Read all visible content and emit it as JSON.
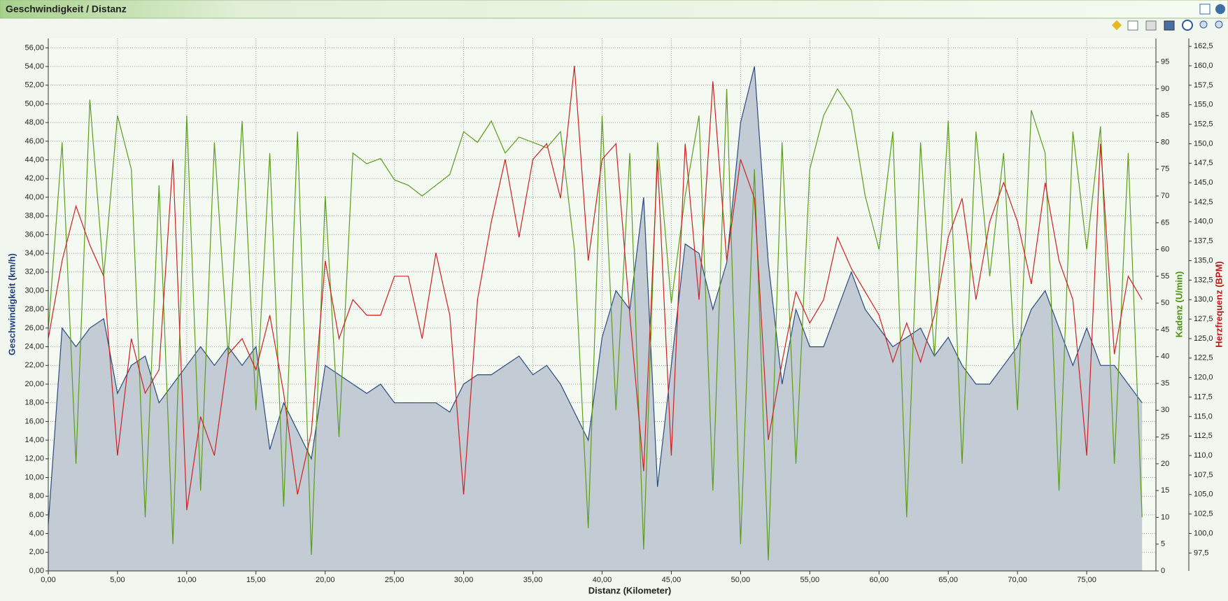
{
  "chart_data": {
    "type": "line",
    "title": "Geschwindigkeit / Distanz",
    "xlabel": "Distanz (Kilometer)",
    "ylabel": "Geschwindigkeit (km/h)",
    "y2label": "Kadenz (U/min)",
    "y3label": "Herzfrequenz (BPM)",
    "grid": true,
    "x": [
      0,
      1,
      2,
      3,
      4,
      5,
      6,
      7,
      8,
      9,
      10,
      11,
      12,
      13,
      14,
      15,
      16,
      17,
      18,
      19,
      20,
      21,
      22,
      23,
      24,
      25,
      26,
      27,
      28,
      29,
      30,
      31,
      32,
      33,
      34,
      35,
      36,
      37,
      38,
      39,
      40,
      41,
      42,
      43,
      44,
      45,
      46,
      47,
      48,
      49,
      50,
      51,
      52,
      53,
      54,
      55,
      56,
      57,
      58,
      59,
      60,
      61,
      62,
      63,
      64,
      65,
      66,
      67,
      68,
      69,
      70,
      71,
      72,
      73,
      74,
      75,
      76,
      77,
      78,
      79
    ],
    "xlim": [
      0,
      80
    ],
    "xticks": [
      {
        "value": 0,
        "label": "0,00"
      },
      {
        "value": 5,
        "label": "5,00"
      },
      {
        "value": 10,
        "label": "10,00"
      },
      {
        "value": 15,
        "label": "15,00"
      },
      {
        "value": 20,
        "label": "20,00"
      },
      {
        "value": 25,
        "label": "25,00"
      },
      {
        "value": 30,
        "label": "30,00"
      },
      {
        "value": 35,
        "label": "35,00"
      },
      {
        "value": 40,
        "label": "40,00"
      },
      {
        "value": 45,
        "label": "45,00"
      },
      {
        "value": 50,
        "label": "50,00"
      },
      {
        "value": 55,
        "label": "55,00"
      },
      {
        "value": 60,
        "label": "60,00"
      },
      {
        "value": 65,
        "label": "65,00"
      },
      {
        "value": 70,
        "label": "70,00"
      },
      {
        "value": 75,
        "label": "75,00"
      }
    ],
    "ylim": [
      0,
      57
    ],
    "yticks": [
      {
        "value": 0,
        "label": "0,00"
      },
      {
        "value": 2,
        "label": "2,00"
      },
      {
        "value": 4,
        "label": "4,00"
      },
      {
        "value": 6,
        "label": "6,00"
      },
      {
        "value": 8,
        "label": "8,00"
      },
      {
        "value": 10,
        "label": "10,00"
      },
      {
        "value": 12,
        "label": "12,00"
      },
      {
        "value": 14,
        "label": "14,00"
      },
      {
        "value": 16,
        "label": "16,00"
      },
      {
        "value": 18,
        "label": "18,00"
      },
      {
        "value": 20,
        "label": "20,00"
      },
      {
        "value": 22,
        "label": "22,00"
      },
      {
        "value": 24,
        "label": "24,00"
      },
      {
        "value": 26,
        "label": "26,00"
      },
      {
        "value": 28,
        "label": "28,00"
      },
      {
        "value": 30,
        "label": "30,00"
      },
      {
        "value": 32,
        "label": "32,00"
      },
      {
        "value": 34,
        "label": "34,00"
      },
      {
        "value": 36,
        "label": "36,00"
      },
      {
        "value": 38,
        "label": "38,00"
      },
      {
        "value": 40,
        "label": "40,00"
      },
      {
        "value": 42,
        "label": "42,00"
      },
      {
        "value": 44,
        "label": "44,00"
      },
      {
        "value": 46,
        "label": "46,00"
      },
      {
        "value": 48,
        "label": "48,00"
      },
      {
        "value": 50,
        "label": "50,00"
      },
      {
        "value": 52,
        "label": "52,00"
      },
      {
        "value": 54,
        "label": "54,00"
      },
      {
        "value": 56,
        "label": "56,00"
      }
    ],
    "y2lim": [
      0,
      99.4
    ],
    "y2ticks": [
      0,
      5,
      10,
      15,
      20,
      25,
      30,
      35,
      40,
      45,
      50,
      55,
      60,
      65,
      70,
      75,
      80,
      85,
      90,
      95
    ],
    "y3lim": [
      95.2,
      163.5
    ],
    "y3ticks": [
      {
        "value": 97.5,
        "label": "97,5"
      },
      {
        "value": 100,
        "label": "100,0"
      },
      {
        "value": 102.5,
        "label": "102,5"
      },
      {
        "value": 105,
        "label": "105,0"
      },
      {
        "value": 107.5,
        "label": "107,5"
      },
      {
        "value": 110,
        "label": "110,0"
      },
      {
        "value": 112.5,
        "label": "112,5"
      },
      {
        "value": 115,
        "label": "115,0"
      },
      {
        "value": 117.5,
        "label": "117,5"
      },
      {
        "value": 120,
        "label": "120,0"
      },
      {
        "value": 122.5,
        "label": "122,5"
      },
      {
        "value": 125,
        "label": "125,0"
      },
      {
        "value": 127.5,
        "label": "127,5"
      },
      {
        "value": 130,
        "label": "130,0"
      },
      {
        "value": 132.5,
        "label": "132,5"
      },
      {
        "value": 135,
        "label": "135,0"
      },
      {
        "value": 137.5,
        "label": "137,5"
      },
      {
        "value": 140,
        "label": "140,0"
      },
      {
        "value": 142.5,
        "label": "142,5"
      },
      {
        "value": 145,
        "label": "145,0"
      },
      {
        "value": 147.5,
        "label": "147,5"
      },
      {
        "value": 150,
        "label": "150,0"
      },
      {
        "value": 152.5,
        "label": "152,5"
      },
      {
        "value": 155,
        "label": "155,0"
      },
      {
        "value": 157.5,
        "label": "157,5"
      },
      {
        "value": 160,
        "label": "160,0"
      },
      {
        "value": 162.5,
        "label": "162,5"
      }
    ],
    "series": [
      {
        "type": "area",
        "axis": "y",
        "color": "#2a4a7f",
        "fill": "#c3ccd5",
        "values": [
          5,
          26,
          24,
          26,
          27,
          19,
          22,
          23,
          18,
          20,
          22,
          24,
          22,
          24,
          22,
          24,
          13,
          18,
          15,
          12,
          22,
          21,
          20,
          19,
          20,
          18,
          18,
          18,
          18,
          17,
          20,
          21,
          21,
          22,
          23,
          21,
          22,
          20,
          17,
          14,
          25,
          30,
          28,
          40,
          9,
          22,
          35,
          34,
          28,
          33,
          48,
          54,
          33,
          20,
          28,
          24,
          24,
          28,
          32,
          28,
          26,
          24,
          25,
          26,
          23,
          25,
          22,
          20,
          20,
          22,
          24,
          28,
          30,
          26,
          22,
          26,
          22,
          22,
          20,
          18
        ]
      },
      {
        "type": "line",
        "axis": "y2",
        "color": "#5a9e1a",
        "values": [
          45,
          80,
          20,
          88,
          55,
          85,
          75,
          10,
          72,
          5,
          85,
          15,
          80,
          40,
          84,
          30,
          78,
          12,
          82,
          3,
          70,
          25,
          78,
          76,
          77,
          73,
          72,
          70,
          72,
          74,
          82,
          80,
          84,
          78,
          81,
          80,
          79,
          82,
          60,
          8,
          85,
          30,
          78,
          4,
          80,
          50,
          70,
          85,
          15,
          90,
          5,
          75,
          2,
          80,
          20,
          75,
          85,
          90,
          86,
          70,
          60,
          82,
          10,
          80,
          40,
          84,
          20,
          82,
          55,
          78,
          30,
          86,
          78,
          15,
          82,
          60,
          83,
          20,
          78,
          10
        ]
      },
      {
        "type": "line",
        "axis": "y3",
        "color": "#cc2222",
        "values": [
          125,
          135,
          142,
          137,
          133,
          110,
          125,
          118,
          121,
          148,
          103,
          115,
          110,
          123,
          125,
          121,
          128,
          118,
          105,
          113,
          135,
          125,
          130,
          128,
          128,
          133,
          133,
          125,
          136,
          128,
          105,
          130,
          140,
          148,
          138,
          148,
          150,
          143,
          160,
          135,
          148,
          150,
          128,
          108,
          148,
          110,
          150,
          130,
          158,
          135,
          148,
          143,
          112,
          122,
          131,
          127,
          130,
          138,
          134,
          131,
          128,
          122,
          127,
          122,
          128,
          138,
          143,
          130,
          140,
          145,
          140,
          132,
          145,
          135,
          130,
          110,
          150,
          123,
          133,
          130
        ]
      }
    ]
  }
}
